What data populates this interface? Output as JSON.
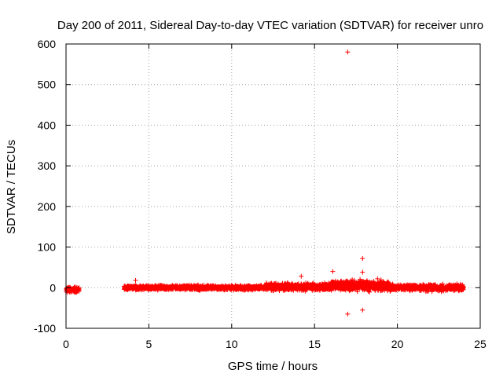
{
  "chart_data": {
    "type": "scatter",
    "title": "Day 200 of 2011, Sidereal Day-to-day VTEC variation (SDTVAR) for receiver unro",
    "xlabel": "GPS time / hours",
    "ylabel": "SDTVAR / TECUs",
    "xlim": [
      0,
      25
    ],
    "ylim": [
      -100,
      600
    ],
    "xticks": [
      0,
      5,
      10,
      15,
      20,
      25
    ],
    "yticks": [
      -100,
      0,
      100,
      200,
      300,
      400,
      500,
      600
    ],
    "grid": true,
    "marker": "+",
    "colors": {
      "points": "#ff0000",
      "axes": "#000000",
      "grid": "#a0a0a0"
    },
    "bands": [
      {
        "x_start": 0.0,
        "x_end": 0.8,
        "y_center": -5,
        "spread": 6
      },
      {
        "x_start": 3.5,
        "x_end": 12.0,
        "y_center": 0,
        "spread": 5
      },
      {
        "x_start": 12.0,
        "x_end": 16.0,
        "y_center": 2,
        "spread": 8
      },
      {
        "x_start": 16.0,
        "x_end": 19.5,
        "y_center": 5,
        "spread": 12
      },
      {
        "x_start": 19.5,
        "x_end": 24.0,
        "y_center": 0,
        "spread": 7
      }
    ],
    "outliers": [
      {
        "x": 17.0,
        "y": 580
      },
      {
        "x": 17.9,
        "y": 72
      },
      {
        "x": 16.1,
        "y": 40
      },
      {
        "x": 17.9,
        "y": 38
      },
      {
        "x": 14.2,
        "y": 28
      },
      {
        "x": 18.8,
        "y": 22
      },
      {
        "x": 4.2,
        "y": 18
      },
      {
        "x": 17.0,
        "y": -65
      },
      {
        "x": 17.9,
        "y": -55
      }
    ]
  }
}
